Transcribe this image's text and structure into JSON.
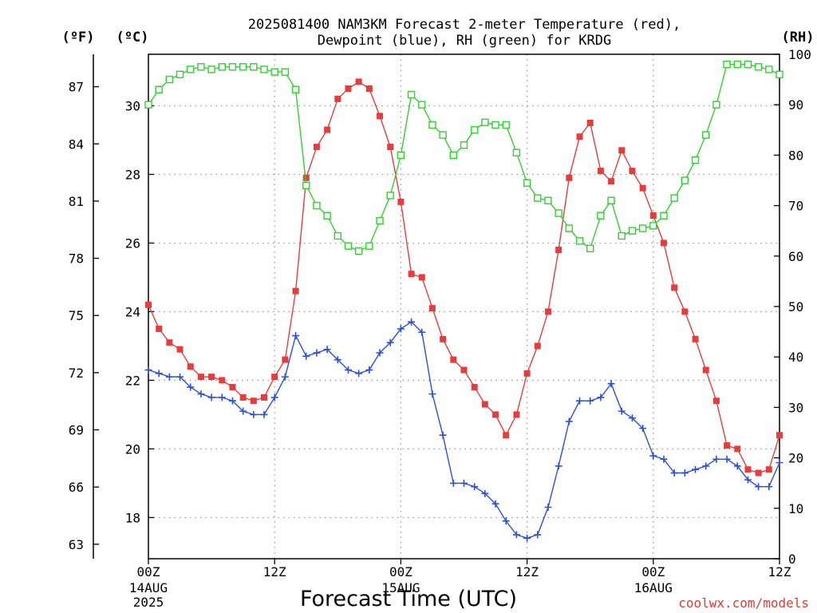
{
  "chart_data": {
    "type": "line",
    "title_lines": [
      "2025081400 NAM3KM Forecast 2-meter Temperature (red),",
      "Dewpoint (blue), RH (green) for KRDG"
    ],
    "xlabel": "Forecast Time (UTC)",
    "credit": "coolwx.com/models",
    "units": {
      "fahrenheit": "(ºF)",
      "celsius": "(ºC)",
      "rh": "(RH)"
    },
    "x_ticks": [
      {
        "hour": 0,
        "label": "00Z",
        "sub": [
          "14AUG",
          "2025"
        ]
      },
      {
        "hour": 12,
        "label": "12Z",
        "sub": []
      },
      {
        "hour": 24,
        "label": "00Z",
        "sub": [
          "15AUG"
        ]
      },
      {
        "hour": 36,
        "label": "12Z",
        "sub": []
      },
      {
        "hour": 48,
        "label": "00Z",
        "sub": [
          "16AUG"
        ]
      },
      {
        "hour": 60,
        "label": "12Z",
        "sub": []
      }
    ],
    "xlim": [
      0,
      60
    ],
    "celsius_axis": {
      "range": [
        16.8,
        31.5
      ],
      "ticks": [
        18,
        20,
        22,
        24,
        26,
        28,
        30
      ]
    },
    "fahrenheit_axis": {
      "ticks": [
        63,
        66,
        69,
        72,
        75,
        78,
        81,
        84,
        87
      ]
    },
    "rh_axis": {
      "range": [
        0,
        100
      ],
      "ticks": [
        0,
        10,
        20,
        30,
        40,
        50,
        60,
        70,
        80,
        90,
        100
      ]
    },
    "grid": true,
    "series": [
      {
        "name": "Temperature",
        "color": "#e83c3c",
        "marker": "filled-square",
        "axis": "celsius",
        "values": [
          24.2,
          23.5,
          23.1,
          22.9,
          22.4,
          22.1,
          22.1,
          22.0,
          21.8,
          21.5,
          21.4,
          21.5,
          22.1,
          22.6,
          24.6,
          27.9,
          28.8,
          29.3,
          30.2,
          30.5,
          30.7,
          30.5,
          29.7,
          28.8,
          27.2,
          25.1,
          25.0,
          24.1,
          23.2,
          22.6,
          22.3,
          21.8,
          21.3,
          21.0,
          20.4,
          21.0,
          22.2,
          23.0,
          24.0,
          25.8,
          27.9,
          29.1,
          29.5,
          28.1,
          27.8,
          28.7,
          28.1,
          27.6,
          26.8,
          26.0,
          24.7,
          24.0,
          23.2,
          22.3,
          21.4,
          20.1,
          20.0,
          19.4,
          19.3,
          19.4,
          20.4
        ]
      },
      {
        "name": "Dewpoint",
        "color": "#2c4fe0",
        "marker": "plus",
        "axis": "celsius",
        "values": [
          22.3,
          22.2,
          22.1,
          22.1,
          21.8,
          21.6,
          21.5,
          21.5,
          21.4,
          21.1,
          21.0,
          21.0,
          21.5,
          22.1,
          23.3,
          22.7,
          22.8,
          22.9,
          22.6,
          22.3,
          22.2,
          22.3,
          22.8,
          23.1,
          23.5,
          23.7,
          23.4,
          21.6,
          20.4,
          19.0,
          19.0,
          18.9,
          18.7,
          18.4,
          17.9,
          17.5,
          17.4,
          17.5,
          18.3,
          19.5,
          20.8,
          21.4,
          21.4,
          21.5,
          21.9,
          21.1,
          20.9,
          20.6,
          19.8,
          19.7,
          19.3,
          19.3,
          19.4,
          19.5,
          19.7,
          19.7,
          19.5,
          19.1,
          18.9,
          18.9,
          19.6
        ]
      },
      {
        "name": "RH",
        "color": "#2fd22f",
        "marker": "open-square",
        "axis": "rh",
        "values": [
          90,
          93,
          95,
          96,
          97,
          97.5,
          97,
          97.5,
          97.5,
          97.5,
          97.5,
          97,
          96.5,
          96.5,
          93,
          74,
          70,
          68,
          64,
          62,
          61,
          62,
          67,
          72,
          80,
          92,
          90,
          86,
          84,
          80,
          82,
          85,
          86.5,
          86,
          86,
          80.5,
          74.5,
          71.5,
          71,
          68.5,
          65.5,
          63,
          61.5,
          68,
          71,
          64,
          65,
          65.5,
          66,
          68,
          71.5,
          75,
          79,
          84,
          90,
          98,
          98,
          98,
          97.5,
          97,
          96
        ]
      }
    ]
  }
}
